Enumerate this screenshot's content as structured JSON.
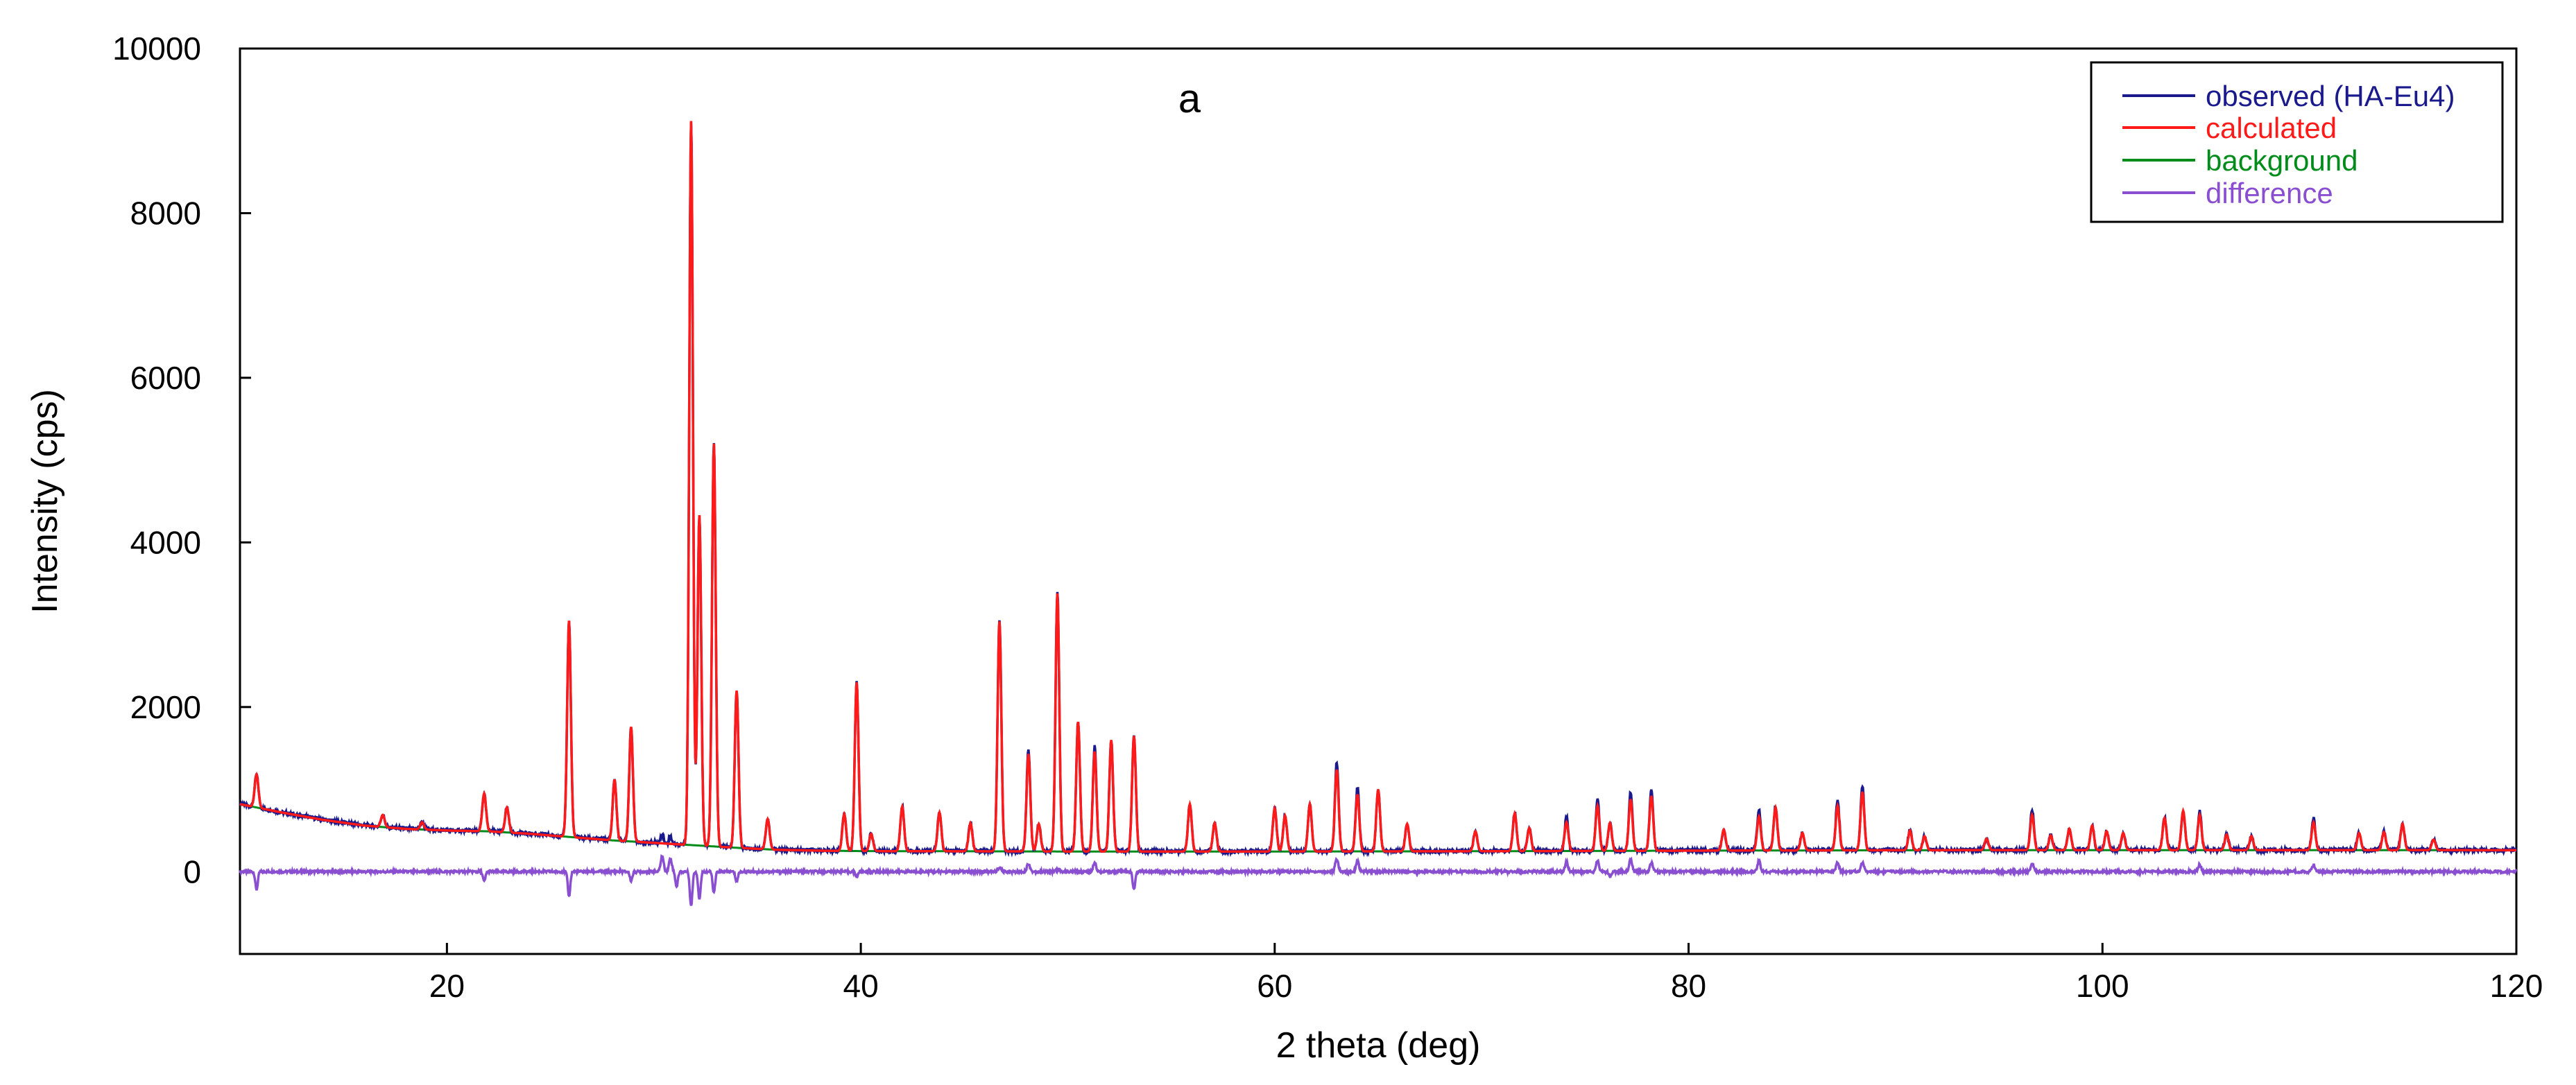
{
  "chart_data": {
    "type": "line",
    "title": "a",
    "xlabel": "2 theta (deg)",
    "ylabel": "Intensity (cps)",
    "xlim": [
      10,
      120
    ],
    "ylim": [
      -1000,
      10000
    ],
    "xticks": [
      "20",
      "40",
      "60",
      "80",
      "100",
      "120"
    ],
    "yticks": [
      "0",
      "2000",
      "4000",
      "6000",
      "8000",
      "10000"
    ],
    "grid": false,
    "legend_position": "top-right",
    "colors": {
      "observed": "#1a1a8c",
      "calculated": "#ff1a1a",
      "background": "#008c1a",
      "difference": "#8a4fd0"
    },
    "series": [
      {
        "name": "observed (HA-Eu4)",
        "style": "observed"
      },
      {
        "name": "calculated",
        "style": "calculated"
      },
      {
        "name": "background",
        "style": "background"
      },
      {
        "name": "difference",
        "style": "difference"
      }
    ],
    "background_points": [
      [
        10,
        820
      ],
      [
        12,
        720
      ],
      [
        14,
        630
      ],
      [
        16,
        560
      ],
      [
        18,
        520
      ],
      [
        20,
        500
      ],
      [
        22,
        490
      ],
      [
        24,
        460
      ],
      [
        26,
        420
      ],
      [
        28,
        380
      ],
      [
        30,
        350
      ],
      [
        32,
        320
      ],
      [
        34,
        290
      ],
      [
        36,
        265
      ],
      [
        38,
        255
      ],
      [
        40,
        250
      ],
      [
        50,
        245
      ],
      [
        60,
        245
      ],
      [
        70,
        248
      ],
      [
        80,
        255
      ],
      [
        90,
        260
      ],
      [
        100,
        262
      ],
      [
        110,
        262
      ],
      [
        120,
        260
      ]
    ],
    "peaks": [
      [
        10.8,
        1180
      ],
      [
        16.9,
        690
      ],
      [
        18.8,
        600
      ],
      [
        21.8,
        950
      ],
      [
        22.9,
        780
      ],
      [
        25.9,
        3050
      ],
      [
        28.1,
        1120
      ],
      [
        28.9,
        1760
      ],
      [
        31.8,
        9120
      ],
      [
        32.2,
        4330
      ],
      [
        32.9,
        5200
      ],
      [
        34.0,
        2200
      ],
      [
        35.5,
        640
      ],
      [
        39.2,
        700
      ],
      [
        39.8,
        2300
      ],
      [
        40.5,
        460
      ],
      [
        42.0,
        790
      ],
      [
        43.8,
        720
      ],
      [
        45.3,
        590
      ],
      [
        46.7,
        3040
      ],
      [
        48.1,
        1430
      ],
      [
        48.6,
        580
      ],
      [
        49.5,
        3380
      ],
      [
        50.5,
        1820
      ],
      [
        51.3,
        1460
      ],
      [
        52.1,
        1600
      ],
      [
        53.2,
        1650
      ],
      [
        55.9,
        820
      ],
      [
        57.1,
        590
      ],
      [
        60.0,
        770
      ],
      [
        60.5,
        680
      ],
      [
        61.7,
        820
      ],
      [
        63.0,
        1240
      ],
      [
        64.0,
        940
      ],
      [
        65.0,
        1000
      ],
      [
        66.4,
        580
      ],
      [
        69.7,
        490
      ],
      [
        71.6,
        710
      ],
      [
        72.3,
        530
      ],
      [
        74.1,
        600
      ],
      [
        75.6,
        800
      ],
      [
        76.2,
        590
      ],
      [
        77.2,
        880
      ],
      [
        78.2,
        920
      ],
      [
        81.7,
        510
      ],
      [
        83.4,
        670
      ],
      [
        84.2,
        780
      ],
      [
        85.5,
        470
      ],
      [
        87.2,
        800
      ],
      [
        88.4,
        970
      ],
      [
        90.7,
        500
      ],
      [
        91.4,
        430
      ],
      [
        94.4,
        400
      ],
      [
        96.6,
        690
      ],
      [
        97.5,
        440
      ],
      [
        98.4,
        520
      ],
      [
        99.5,
        560
      ],
      [
        100.2,
        490
      ],
      [
        101.0,
        470
      ],
      [
        103.0,
        650
      ],
      [
        103.9,
        740
      ],
      [
        104.7,
        690
      ],
      [
        106.0,
        450
      ],
      [
        107.2,
        430
      ],
      [
        110.2,
        600
      ],
      [
        112.4,
        470
      ],
      [
        113.6,
        480
      ],
      [
        114.5,
        580
      ],
      [
        116.0,
        390
      ]
    ],
    "difference_dips": [
      [
        10.8,
        -220
      ],
      [
        21.8,
        -120
      ],
      [
        25.9,
        -300
      ],
      [
        28.9,
        -110
      ],
      [
        31.1,
        -180
      ],
      [
        31.8,
        -420
      ],
      [
        32.2,
        -330
      ],
      [
        32.9,
        -260
      ],
      [
        34.0,
        -120
      ],
      [
        39.8,
        -60
      ],
      [
        46.7,
        -80
      ],
      [
        49.5,
        -90
      ],
      [
        53.2,
        -220
      ],
      [
        63.0,
        -70
      ],
      [
        76.2,
        -60
      ],
      [
        88.4,
        -60
      ]
    ],
    "difference_bumps": [
      [
        30.4,
        190
      ],
      [
        30.8,
        160
      ],
      [
        46.7,
        120
      ],
      [
        48.1,
        100
      ],
      [
        49.5,
        110
      ],
      [
        51.3,
        120
      ],
      [
        63.0,
        220
      ],
      [
        64.0,
        130
      ],
      [
        74.1,
        120
      ],
      [
        75.6,
        140
      ],
      [
        77.2,
        160
      ],
      [
        78.2,
        110
      ],
      [
        83.4,
        130
      ],
      [
        87.2,
        110
      ],
      [
        88.4,
        170
      ],
      [
        96.6,
        100
      ],
      [
        104.7,
        90
      ],
      [
        110.2,
        80
      ]
    ]
  }
}
